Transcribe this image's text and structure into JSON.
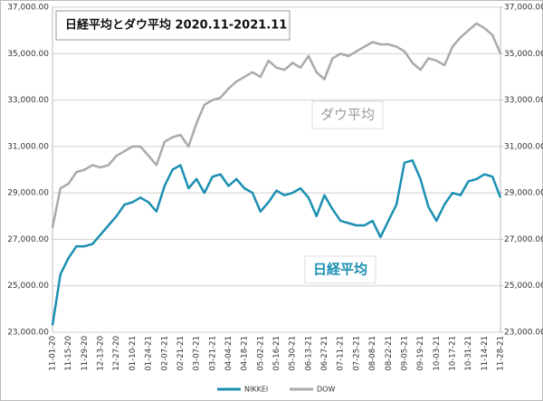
{
  "chart_data": {
    "type": "line",
    "title": "日経平均とダウ平均 2020.11-2021.11",
    "annotations": [
      "ダウ平均",
      "日経平均"
    ],
    "categories": [
      "11-01-20",
      null,
      "11-15-20",
      null,
      "11-29-20",
      null,
      "12-13-20",
      null,
      "12-27-20",
      null,
      "01-10-21",
      null,
      "01-24-21",
      null,
      "02-07-21",
      null,
      "02-21-21",
      null,
      "03-07-21",
      null,
      "03-21-21",
      null,
      "04-04-21",
      null,
      "04-18-21",
      null,
      "05-02-21",
      null,
      "05-16-21",
      null,
      "05-30-21",
      null,
      "06-13-21",
      null,
      "06-27-21",
      null,
      "07-11-21",
      null,
      "07-25-21",
      null,
      "08-08-21",
      null,
      "08-22-21",
      null,
      "09-05-21",
      null,
      "09-19-21",
      null,
      "10-03-21",
      null,
      "10-17-21",
      null,
      "10-31-21",
      null,
      "11-14-21",
      null,
      "11-28-21"
    ],
    "series": [
      {
        "name": "NIKKEI",
        "color": "#1b8fb2",
        "axis": "y",
        "values": [
          23300,
          25500,
          26200,
          26700,
          26700,
          26800,
          27200,
          27600,
          28000,
          28500,
          28600,
          28800,
          28600,
          28200,
          29300,
          30000,
          30200,
          29200,
          29600,
          29000,
          29700,
          29800,
          29300,
          29600,
          29200,
          29000,
          28200,
          28600,
          29100,
          28900,
          29000,
          29200,
          28800,
          28000,
          28900,
          28300,
          27800,
          27700,
          27600,
          27600,
          27800,
          27100,
          27800,
          28500,
          30300,
          30400,
          29600,
          28400,
          27800,
          28500,
          29000,
          28900,
          29500,
          29600,
          29800,
          29700,
          28800
        ]
      },
      {
        "name": "DOW",
        "color": "#aaaaaa",
        "axis": "y2",
        "values": [
          27500,
          29200,
          29400,
          29900,
          30000,
          30200,
          30100,
          30200,
          30600,
          30800,
          31000,
          31000,
          30600,
          30200,
          31200,
          31400,
          31500,
          31000,
          32000,
          32800,
          33000,
          33100,
          33500,
          33800,
          34000,
          34200,
          34000,
          34700,
          34400,
          34300,
          34600,
          34400,
          34900,
          34200,
          33900,
          34800,
          35000,
          34900,
          35100,
          35300,
          35500,
          35400,
          35400,
          35300,
          35100,
          34600,
          34300,
          34800,
          34700,
          34500,
          35300,
          35700,
          36000,
          36300,
          36100,
          35800,
          35000
        ]
      }
    ],
    "ylim": [
      23000,
      37000
    ],
    "yticks": [
      {
        "value": 23000,
        "label": "23,000.00"
      },
      {
        "value": 25000,
        "label": "25,000.00"
      },
      {
        "value": 27000,
        "label": "27,000.00"
      },
      {
        "value": 29000,
        "label": "29,000.00"
      },
      {
        "value": 31000,
        "label": "31,000.00"
      },
      {
        "value": 33000,
        "label": "33,000.00"
      },
      {
        "value": 35000,
        "label": "35,000.00"
      },
      {
        "value": 37000,
        "label": "37,000.00"
      }
    ],
    "y2lim": [
      23000,
      37000
    ],
    "y2ticks": [
      {
        "value": 23000,
        "label": "23,000.00"
      },
      {
        "value": 25000,
        "label": "25,000.00"
      },
      {
        "value": 27000,
        "label": "27,000.00"
      },
      {
        "value": 29000,
        "label": "29,000.00"
      },
      {
        "value": 31000,
        "label": "31,000.00"
      },
      {
        "value": 33000,
        "label": "33,000.00"
      },
      {
        "value": 35000,
        "label": "35,000.00"
      },
      {
        "value": 37000,
        "label": "37,000.00"
      }
    ],
    "grid": true,
    "legend": "bottom"
  }
}
